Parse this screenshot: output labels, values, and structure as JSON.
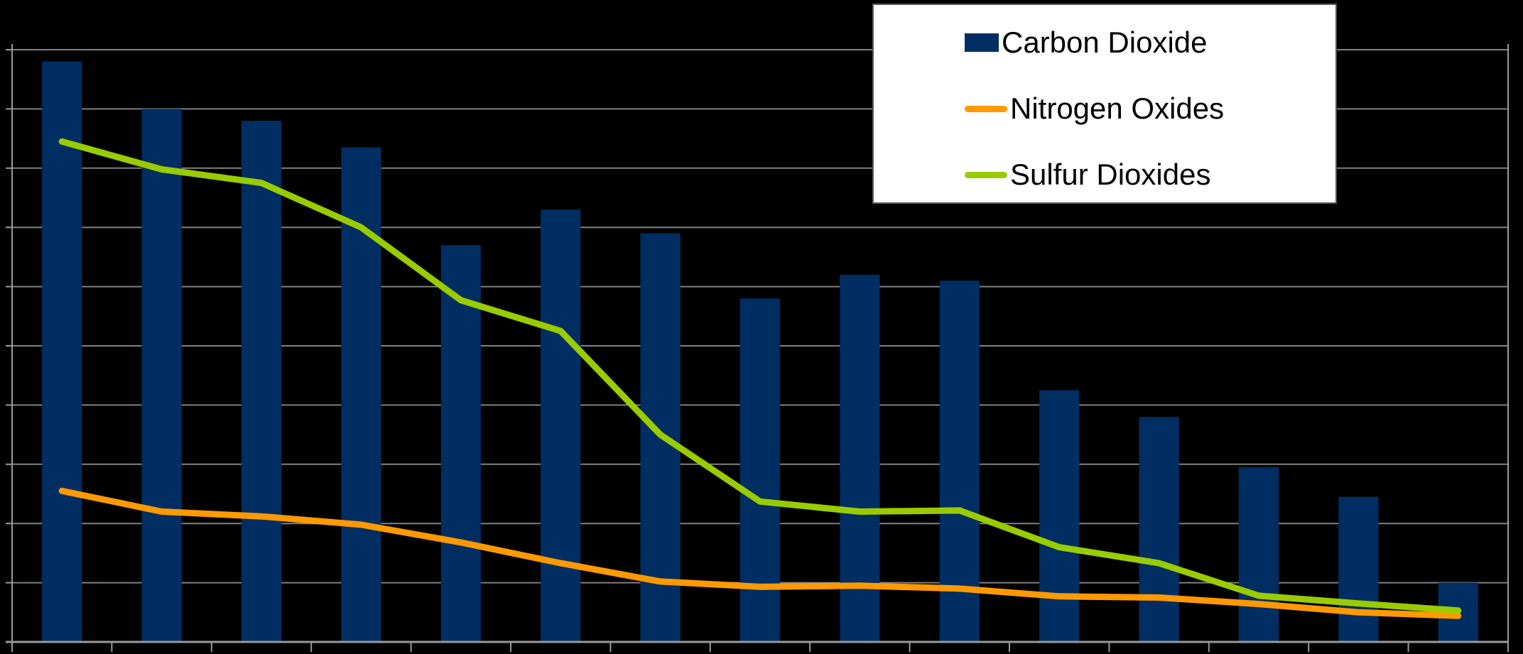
{
  "chart_data": {
    "type": "bar",
    "categories": [
      "",
      "",
      "",
      "",
      "",
      "",
      "",
      "",
      "",
      "",
      "",
      "",
      "",
      "",
      ""
    ],
    "series": [
      {
        "name": "Carbon Dioxide",
        "type": "bar",
        "color": "#002e62",
        "values": [
          9.8,
          9.0,
          8.8,
          8.35,
          6.7,
          7.3,
          6.9,
          5.8,
          6.2,
          6.1,
          4.25,
          3.8,
          2.95,
          2.45,
          1.0
        ]
      },
      {
        "name": "Nitrogen Oxides",
        "type": "line",
        "color": "#ff9900",
        "values": [
          2.55,
          2.2,
          2.12,
          1.98,
          1.68,
          1.33,
          1.02,
          0.93,
          0.95,
          0.9,
          0.77,
          0.75,
          0.64,
          0.5,
          0.44
        ]
      },
      {
        "name": "Sulfur Dioxides",
        "type": "line",
        "color": "#99cc00",
        "values": [
          8.45,
          7.98,
          7.75,
          7.0,
          5.77,
          5.25,
          3.5,
          2.37,
          2.2,
          2.22,
          1.6,
          1.33,
          0.78,
          0.65,
          0.53
        ]
      }
    ],
    "ylim": [
      0,
      10
    ],
    "y_ticks": [
      0,
      1,
      2,
      3,
      4,
      5,
      6,
      7,
      8,
      9,
      10
    ],
    "grid": true,
    "legend_position": "top-right",
    "title": "",
    "xlabel": "",
    "ylabel": ""
  }
}
